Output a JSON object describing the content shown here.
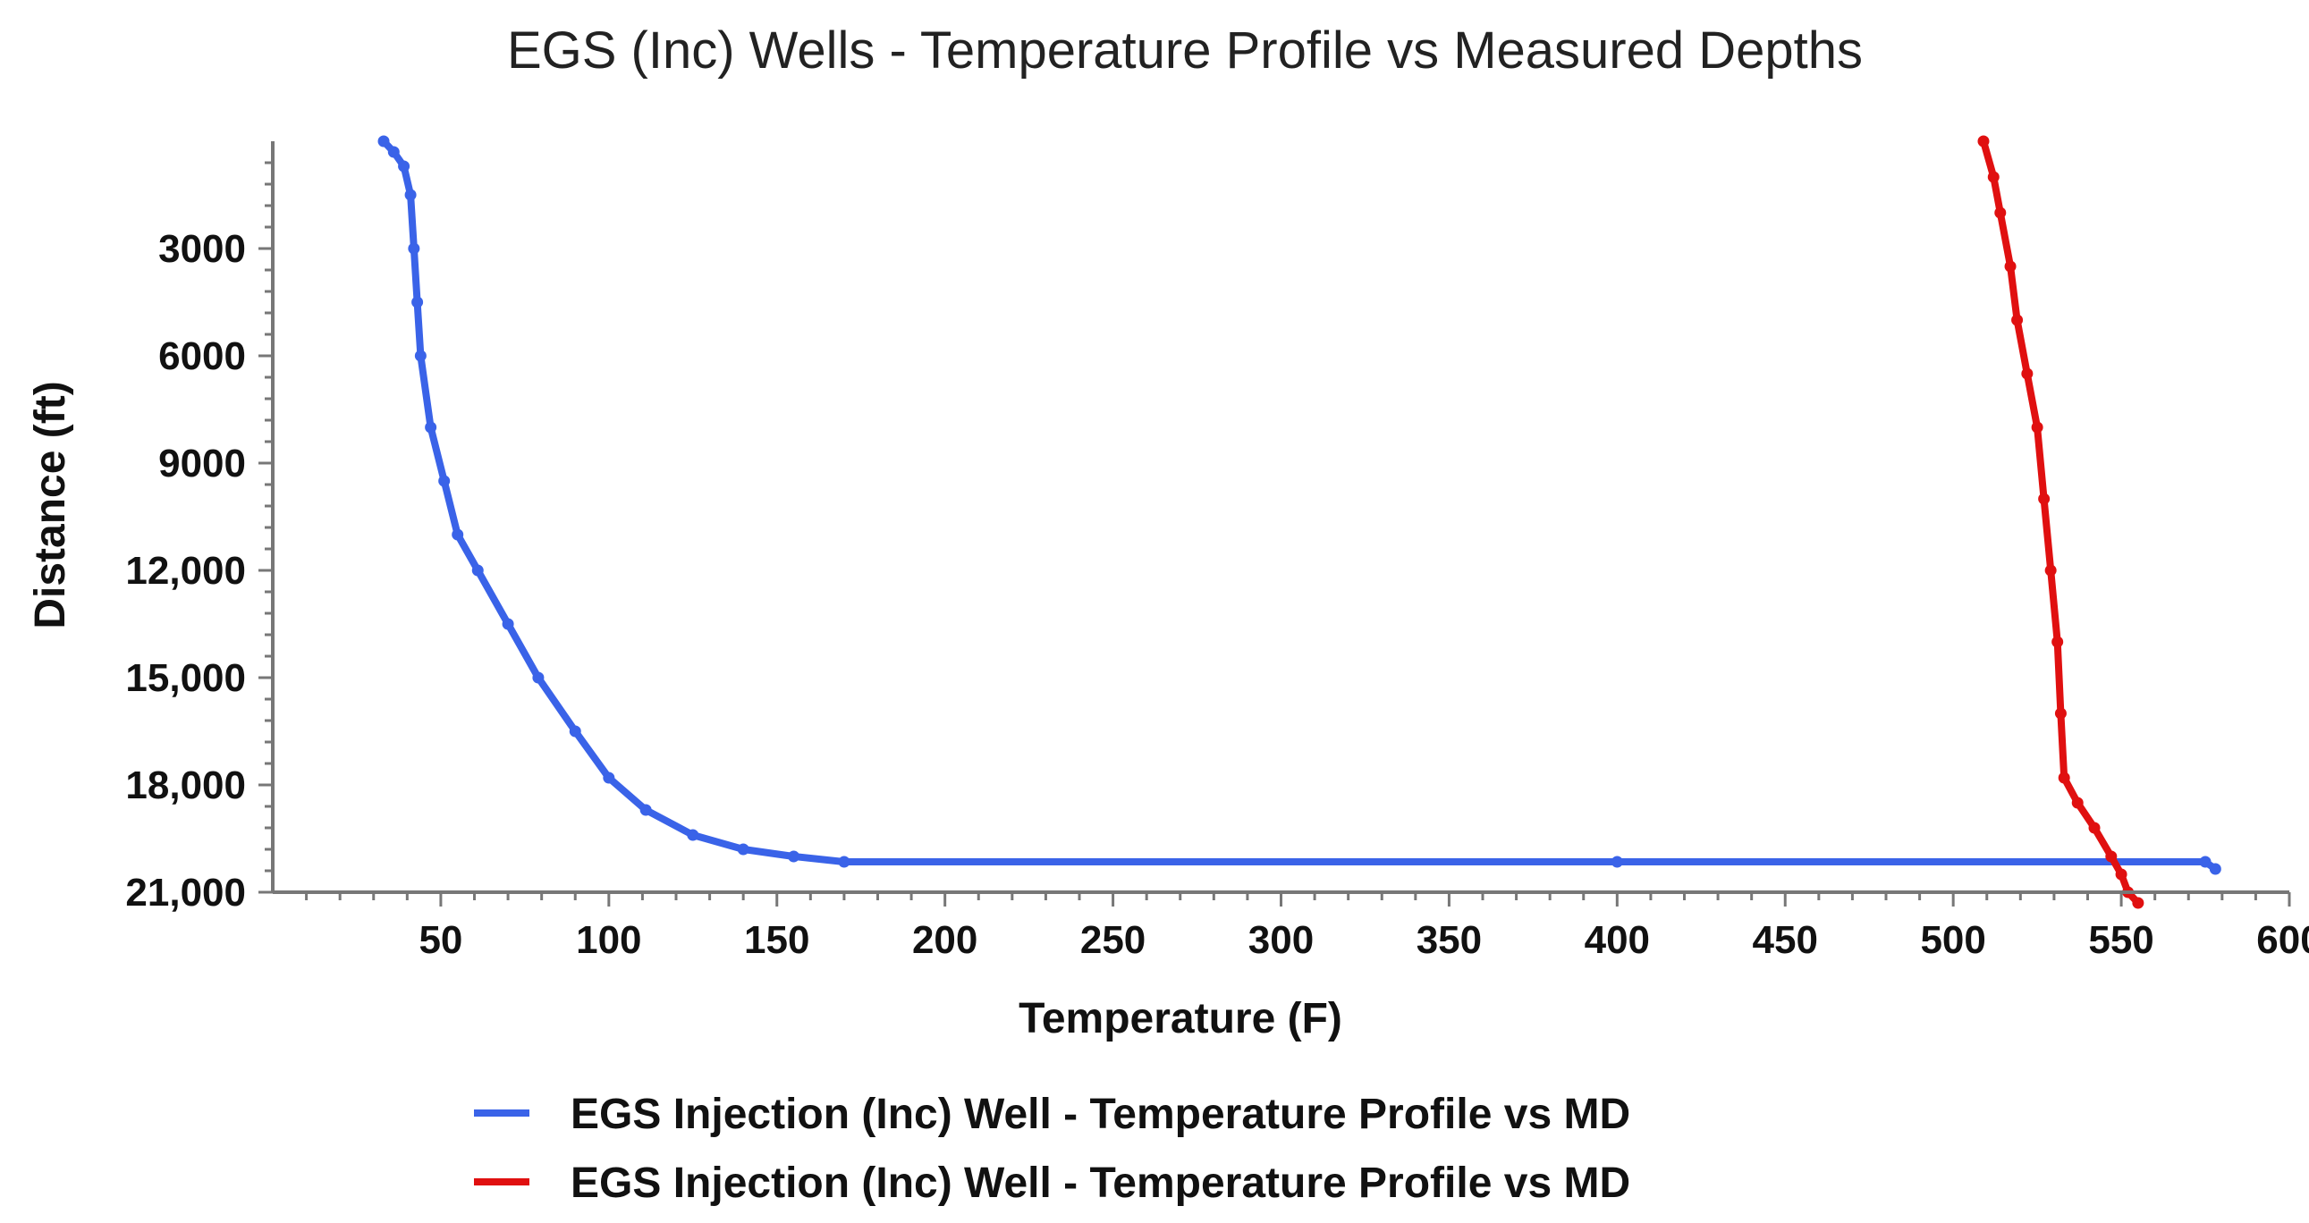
{
  "chart_data": {
    "type": "line",
    "title": "EGS (Inc) Wells - Temperature Profile vs Measured Depths",
    "xlabel": "Temperature (F)",
    "ylabel": "Distance (ft)",
    "xlim": [
      0,
      600
    ],
    "ylim": [
      0,
      21000
    ],
    "y_inverted": true,
    "xticks": [
      50,
      100,
      150,
      200,
      250,
      300,
      350,
      400,
      450,
      500,
      550,
      600
    ],
    "xtick_labels": [
      "50",
      "100",
      "150",
      "200",
      "250",
      "300",
      "350",
      "400",
      "450",
      "500",
      "550",
      "600"
    ],
    "yticks": [
      3000,
      6000,
      9000,
      12000,
      15000,
      18000,
      21000
    ],
    "ytick_labels": [
      "3000",
      "6000",
      "9000",
      "12,000",
      "15,000",
      "18,000",
      "21,000"
    ],
    "legend_position": "bottom",
    "series": [
      {
        "name": "EGS Injection (Inc) Well - Temperature Profile vs MD",
        "color": "#3a63e8",
        "points": [
          [
            33,
            0
          ],
          [
            36,
            300
          ],
          [
            39,
            700
          ],
          [
            41,
            1500
          ],
          [
            42,
            3000
          ],
          [
            43,
            4500
          ],
          [
            44,
            6000
          ],
          [
            47,
            8000
          ],
          [
            51,
            9500
          ],
          [
            55,
            11000
          ],
          [
            61,
            12000
          ],
          [
            70,
            13500
          ],
          [
            79,
            15000
          ],
          [
            90,
            16500
          ],
          [
            100,
            17800
          ],
          [
            111,
            18700
          ],
          [
            125,
            19400
          ],
          [
            140,
            19800
          ],
          [
            155,
            20000
          ],
          [
            170,
            20150
          ],
          [
            400,
            20150
          ],
          [
            575,
            20150
          ],
          [
            578,
            20350
          ]
        ]
      },
      {
        "name": "EGS Injection (Inc) Well - Temperature Profile vs MD",
        "color": "#e01010",
        "points": [
          [
            509,
            0
          ],
          [
            512,
            1000
          ],
          [
            514,
            2000
          ],
          [
            517,
            3500
          ],
          [
            519,
            5000
          ],
          [
            522,
            6500
          ],
          [
            525,
            8000
          ],
          [
            527,
            10000
          ],
          [
            529,
            12000
          ],
          [
            531,
            14000
          ],
          [
            532,
            16000
          ],
          [
            533,
            17800
          ],
          [
            537,
            18500
          ],
          [
            542,
            19200
          ],
          [
            547,
            20000
          ],
          [
            550,
            20500
          ],
          [
            552,
            21000
          ],
          [
            555,
            21300
          ]
        ]
      }
    ]
  }
}
